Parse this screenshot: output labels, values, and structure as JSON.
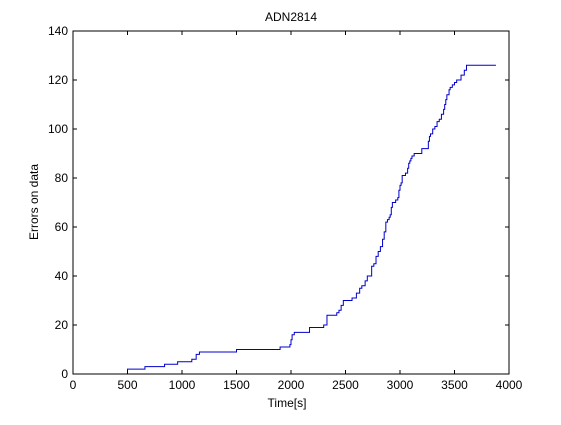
{
  "chart_data": {
    "type": "line",
    "title": "ADN2814",
    "xlabel": "Time[s]",
    "ylabel": "Errors on data",
    "xlim": [
      0,
      4000
    ],
    "ylim": [
      0,
      140
    ],
    "xticks": [
      0,
      500,
      1000,
      1500,
      2000,
      2500,
      3000,
      3500,
      4000
    ],
    "yticks": [
      0,
      20,
      40,
      60,
      80,
      100,
      120,
      140
    ],
    "grid": false,
    "legend": "none",
    "step": true,
    "series": [
      {
        "color": "#0000cc",
        "x": [
          500,
          500,
          660,
          840,
          960,
          1090,
          1130,
          1160,
          1500,
          1900,
          1990,
          2000,
          2010,
          2030,
          2170,
          2300,
          2330,
          2420,
          2440,
          2460,
          2480,
          2560,
          2600,
          2630,
          2650,
          2680,
          2700,
          2740,
          2760,
          2780,
          2800,
          2820,
          2840,
          2855,
          2870,
          2885,
          2900,
          2910,
          2920,
          2930,
          2960,
          2980,
          2990,
          3000,
          3010,
          3020,
          3050,
          3070,
          3080,
          3090,
          3100,
          3110,
          3120,
          3130,
          3140,
          3170,
          3200,
          3260,
          3270,
          3280,
          3300,
          3320,
          3340,
          3360,
          3380,
          3400,
          3410,
          3420,
          3430,
          3450,
          3460,
          3480,
          3500,
          3520,
          3560,
          3590,
          3610,
          3640,
          3880
        ],
        "y": [
          0,
          2,
          3,
          4,
          5,
          6,
          8,
          9,
          10,
          11,
          12,
          14,
          16,
          17,
          19,
          20,
          24,
          25,
          26,
          28,
          30,
          31,
          33,
          35,
          36,
          38,
          40,
          44,
          45,
          48,
          50,
          52,
          55,
          58,
          62,
          63,
          64,
          65,
          68,
          70,
          71,
          72,
          75,
          77,
          78,
          81,
          82,
          84,
          86,
          87,
          88,
          89,
          89,
          90,
          90,
          90,
          92,
          95,
          97,
          98,
          100,
          101,
          103,
          104,
          106,
          108,
          110,
          112,
          114,
          116,
          117,
          118,
          119,
          120,
          122,
          124,
          126,
          126,
          126
        ]
      }
    ]
  }
}
